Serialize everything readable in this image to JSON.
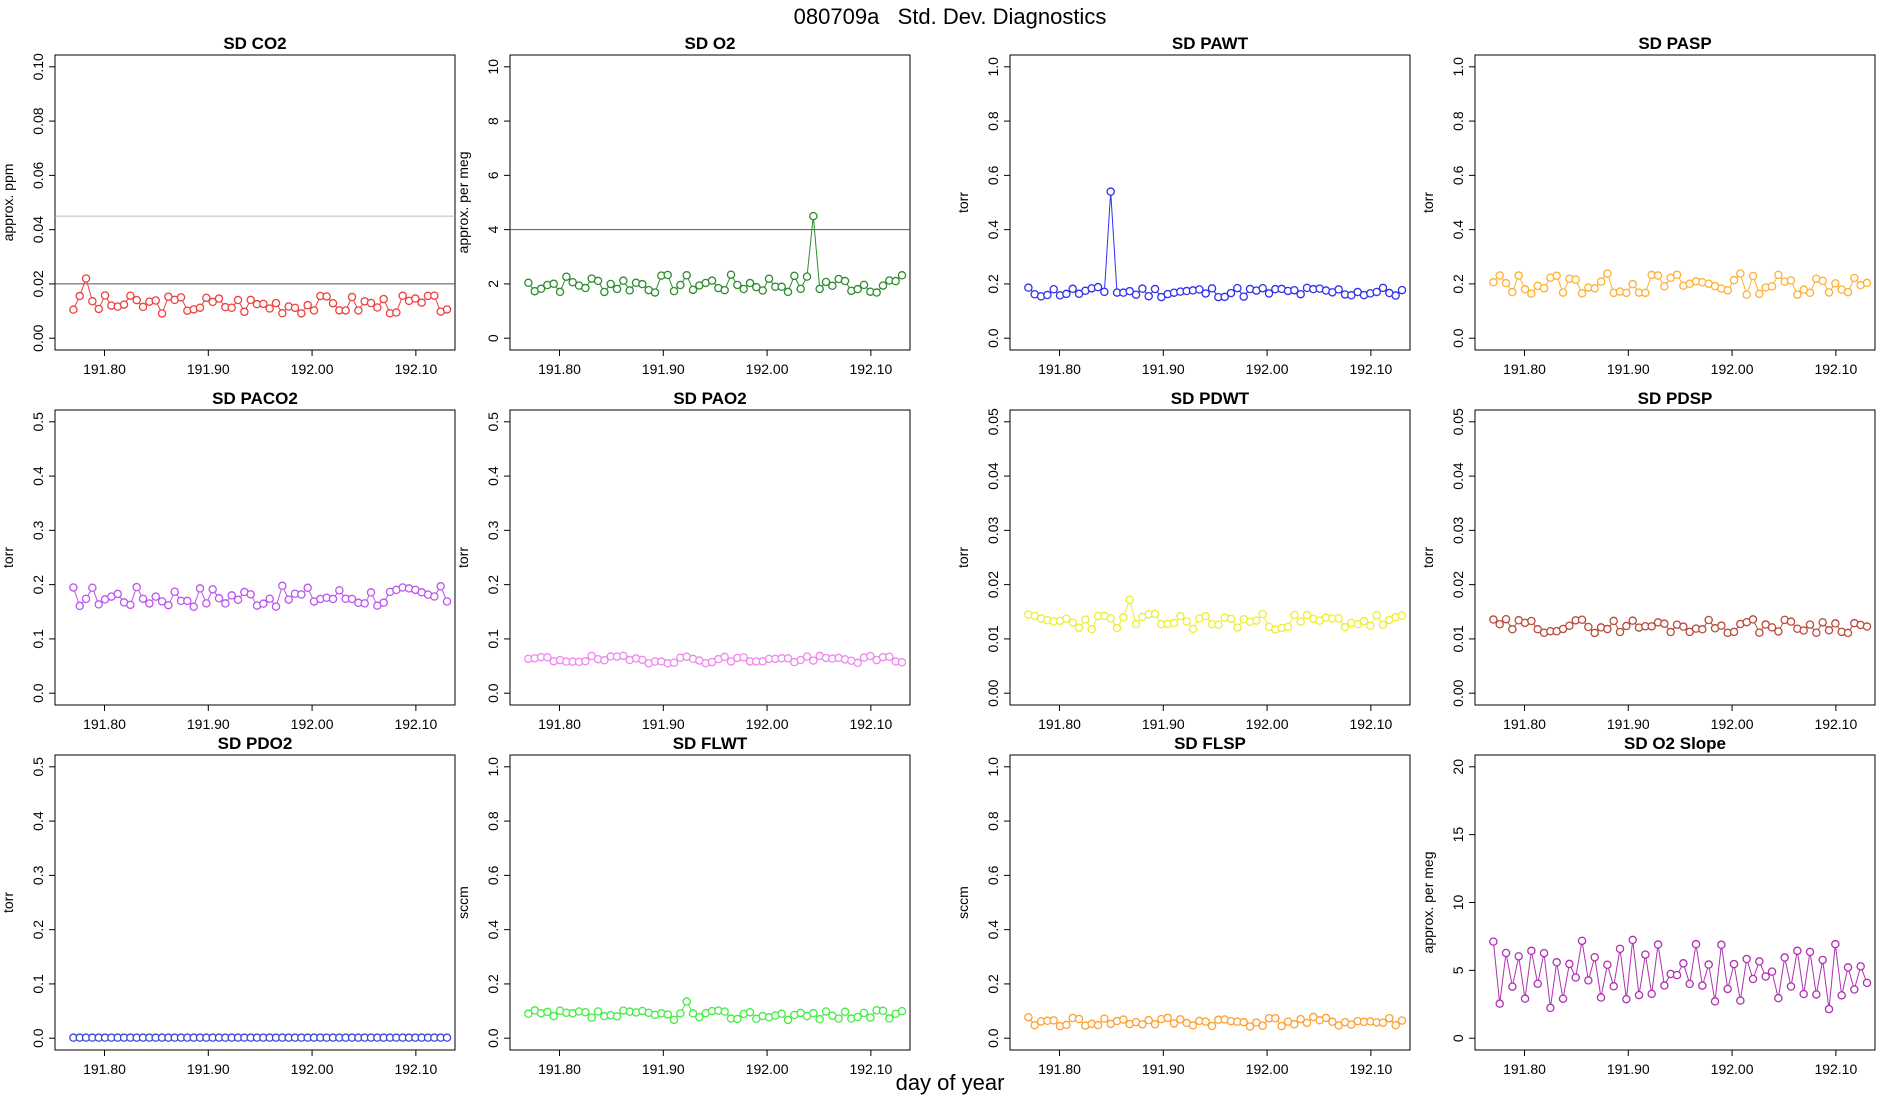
{
  "title": "080709a   Std. Dev. Diagnostics",
  "xlabel": "day of year",
  "colors": {
    "CO2": "#ef4040",
    "O2": "#2e8b2e",
    "PAWT": "#3030ee",
    "PASP": "#ffb030",
    "PACO2": "#bb55ee",
    "PAO2": "#ee88ee",
    "PDWT": "#eeee30",
    "PDSP": "#b84a3a",
    "PDO2": "#3a48dd",
    "FLWT": "#40ee40",
    "FLSP": "#ffa030",
    "O2SLOPE": "#b030b0",
    "reference_line": "#555555",
    "threshold_line": "#bbbbbb"
  },
  "chart_data": [
    {
      "type": "line",
      "key": "co2",
      "title": "SD CO2",
      "ylabel": "approx. ppm",
      "ylim": [
        0,
        0.1
      ],
      "yticks": [
        "0.00",
        "0.02",
        "0.04",
        "0.06",
        "0.08",
        "0.10"
      ],
      "xticks": [
        "191.80",
        "191.90",
        "192.00",
        "192.10"
      ],
      "xlim": [
        191.76,
        192.13
      ],
      "hlines": [
        0.02,
        0.045
      ],
      "color_key": "CO2",
      "base": 0.0125,
      "amp": 0.0035,
      "seed": 3,
      "spikes": [
        [
          0.03,
          0.022
        ]
      ]
    },
    {
      "type": "line",
      "key": "o2",
      "title": "SD O2",
      "ylabel": "approx. per meg",
      "ylim": [
        0,
        10
      ],
      "yticks": [
        "0",
        "2",
        "4",
        "6",
        "8",
        "10"
      ],
      "xticks": [
        "191.80",
        "191.90",
        "192.00",
        "192.10"
      ],
      "xlim": [
        191.76,
        192.13
      ],
      "hlines": [
        4
      ],
      "color_key": "O2",
      "base": 2.0,
      "amp": 0.35,
      "seed": 7,
      "spikes": [
        [
          0.77,
          4.5
        ]
      ]
    },
    {
      "type": "line",
      "key": "pawt",
      "title": "SD PAWT",
      "ylabel": "torr",
      "ylim": [
        0,
        1.0
      ],
      "yticks": [
        "0.0",
        "0.2",
        "0.4",
        "0.6",
        "0.8",
        "1.0"
      ],
      "xticks": [
        "191.80",
        "191.90",
        "192.00",
        "192.10"
      ],
      "xlim": [
        191.76,
        192.13
      ],
      "hlines": [],
      "color_key": "PAWT",
      "base": 0.17,
      "amp": 0.02,
      "seed": 11,
      "spikes": [
        [
          191.85,
          0.54
        ]
      ]
    },
    {
      "type": "line",
      "key": "pasp",
      "title": "SD PASP",
      "ylabel": "torr",
      "ylim": [
        0,
        1.0
      ],
      "yticks": [
        "0.0",
        "0.2",
        "0.4",
        "0.6",
        "0.8",
        "1.0"
      ],
      "xticks": [
        "191.80",
        "191.90",
        "192.00",
        "192.10"
      ],
      "xlim": [
        191.76,
        192.13
      ],
      "hlines": [],
      "color_key": "PASP",
      "base": 0.2,
      "amp": 0.04,
      "seed": 13,
      "spikes": []
    },
    {
      "type": "line",
      "key": "paco2",
      "title": "SD PACO2",
      "ylabel": "torr",
      "ylim": [
        0,
        0.5
      ],
      "yticks": [
        "0.0",
        "0.1",
        "0.2",
        "0.3",
        "0.4",
        "0.5"
      ],
      "xticks": [
        "191.80",
        "191.90",
        "192.00",
        "192.10"
      ],
      "xlim": [
        191.76,
        192.13
      ],
      "hlines": [],
      "color_key": "PACO2",
      "base": 0.178,
      "amp": 0.02,
      "seed": 17,
      "spikes": []
    },
    {
      "type": "line",
      "key": "pao2",
      "title": "SD PAO2",
      "ylabel": "torr",
      "ylim": [
        0,
        0.5
      ],
      "yticks": [
        "0.0",
        "0.1",
        "0.2",
        "0.3",
        "0.4",
        "0.5"
      ],
      "xticks": [
        "191.80",
        "191.90",
        "192.00",
        "192.10"
      ],
      "xlim": [
        191.76,
        192.13
      ],
      "hlines": [],
      "color_key": "PAO2",
      "base": 0.062,
      "amp": 0.007,
      "seed": 19,
      "spikes": []
    },
    {
      "type": "line",
      "key": "pdwt",
      "title": "SD PDWT",
      "ylabel": "torr",
      "ylim": [
        0,
        0.05
      ],
      "yticks": [
        "0.00",
        "0.01",
        "0.02",
        "0.03",
        "0.04",
        "0.05"
      ],
      "xticks": [
        "191.80",
        "191.90",
        "192.00",
        "192.10"
      ],
      "xlim": [
        191.76,
        192.13
      ],
      "hlines": [],
      "color_key": "PDWT",
      "base": 0.0132,
      "amp": 0.0015,
      "seed": 23,
      "spikes": [
        [
          191.87,
          0.0172
        ]
      ]
    },
    {
      "type": "line",
      "key": "pdsp",
      "title": "SD PDSP",
      "ylabel": "torr",
      "ylim": [
        0,
        0.05
      ],
      "yticks": [
        "0.00",
        "0.01",
        "0.02",
        "0.03",
        "0.04",
        "0.05"
      ],
      "xticks": [
        "191.80",
        "191.90",
        "192.00",
        "192.10"
      ],
      "xlim": [
        191.76,
        192.13
      ],
      "hlines": [],
      "color_key": "PDSP",
      "base": 0.0124,
      "amp": 0.0013,
      "seed": 29,
      "spikes": []
    },
    {
      "type": "line",
      "key": "pdo2",
      "title": "SD PDO2",
      "ylabel": "torr",
      "ylim": [
        0,
        0.5
      ],
      "yticks": [
        "0.0",
        "0.1",
        "0.2",
        "0.3",
        "0.4",
        "0.5"
      ],
      "xticks": [
        "191.80",
        "191.90",
        "192.00",
        "192.10"
      ],
      "xlim": [
        191.76,
        192.13
      ],
      "hlines": [],
      "color_key": "PDO2",
      "base": 0.001,
      "amp": 0.0,
      "seed": 31,
      "spikes": []
    },
    {
      "type": "line",
      "key": "flwt",
      "title": "SD FLWT",
      "ylabel": "sccm",
      "ylim": [
        0,
        1.0
      ],
      "yticks": [
        "0.0",
        "0.2",
        "0.4",
        "0.6",
        "0.8",
        "1.0"
      ],
      "xticks": [
        "191.80",
        "191.90",
        "192.00",
        "192.10"
      ],
      "xlim": [
        191.76,
        192.13
      ],
      "hlines": [],
      "color_key": "FLWT",
      "base": 0.085,
      "amp": 0.018,
      "seed": 37,
      "spikes": [
        [
          191.925,
          0.135
        ]
      ]
    },
    {
      "type": "line",
      "key": "flsp",
      "title": "SD FLSP",
      "ylabel": "sccm",
      "ylim": [
        0,
        1.0
      ],
      "yticks": [
        "0.0",
        "0.2",
        "0.4",
        "0.6",
        "0.8",
        "1.0"
      ],
      "xticks": [
        "191.80",
        "191.90",
        "192.00",
        "192.10"
      ],
      "xlim": [
        191.76,
        192.13
      ],
      "hlines": [],
      "color_key": "FLSP",
      "base": 0.06,
      "amp": 0.018,
      "seed": 41,
      "spikes": []
    },
    {
      "type": "line",
      "key": "o2slope",
      "title": "SD O2 Slope",
      "ylabel": "approx. per meg",
      "ylim": [
        0,
        20
      ],
      "yticks": [
        "0",
        "5",
        "10",
        "15",
        "20"
      ],
      "xticks": [
        "191.80",
        "191.90",
        "192.00",
        "192.10"
      ],
      "xlim": [
        191.76,
        192.13
      ],
      "hlines": [],
      "color_key": "O2SLOPE",
      "base": 4.8,
      "amp": 2.3,
      "seed": 43,
      "spikes": []
    }
  ]
}
